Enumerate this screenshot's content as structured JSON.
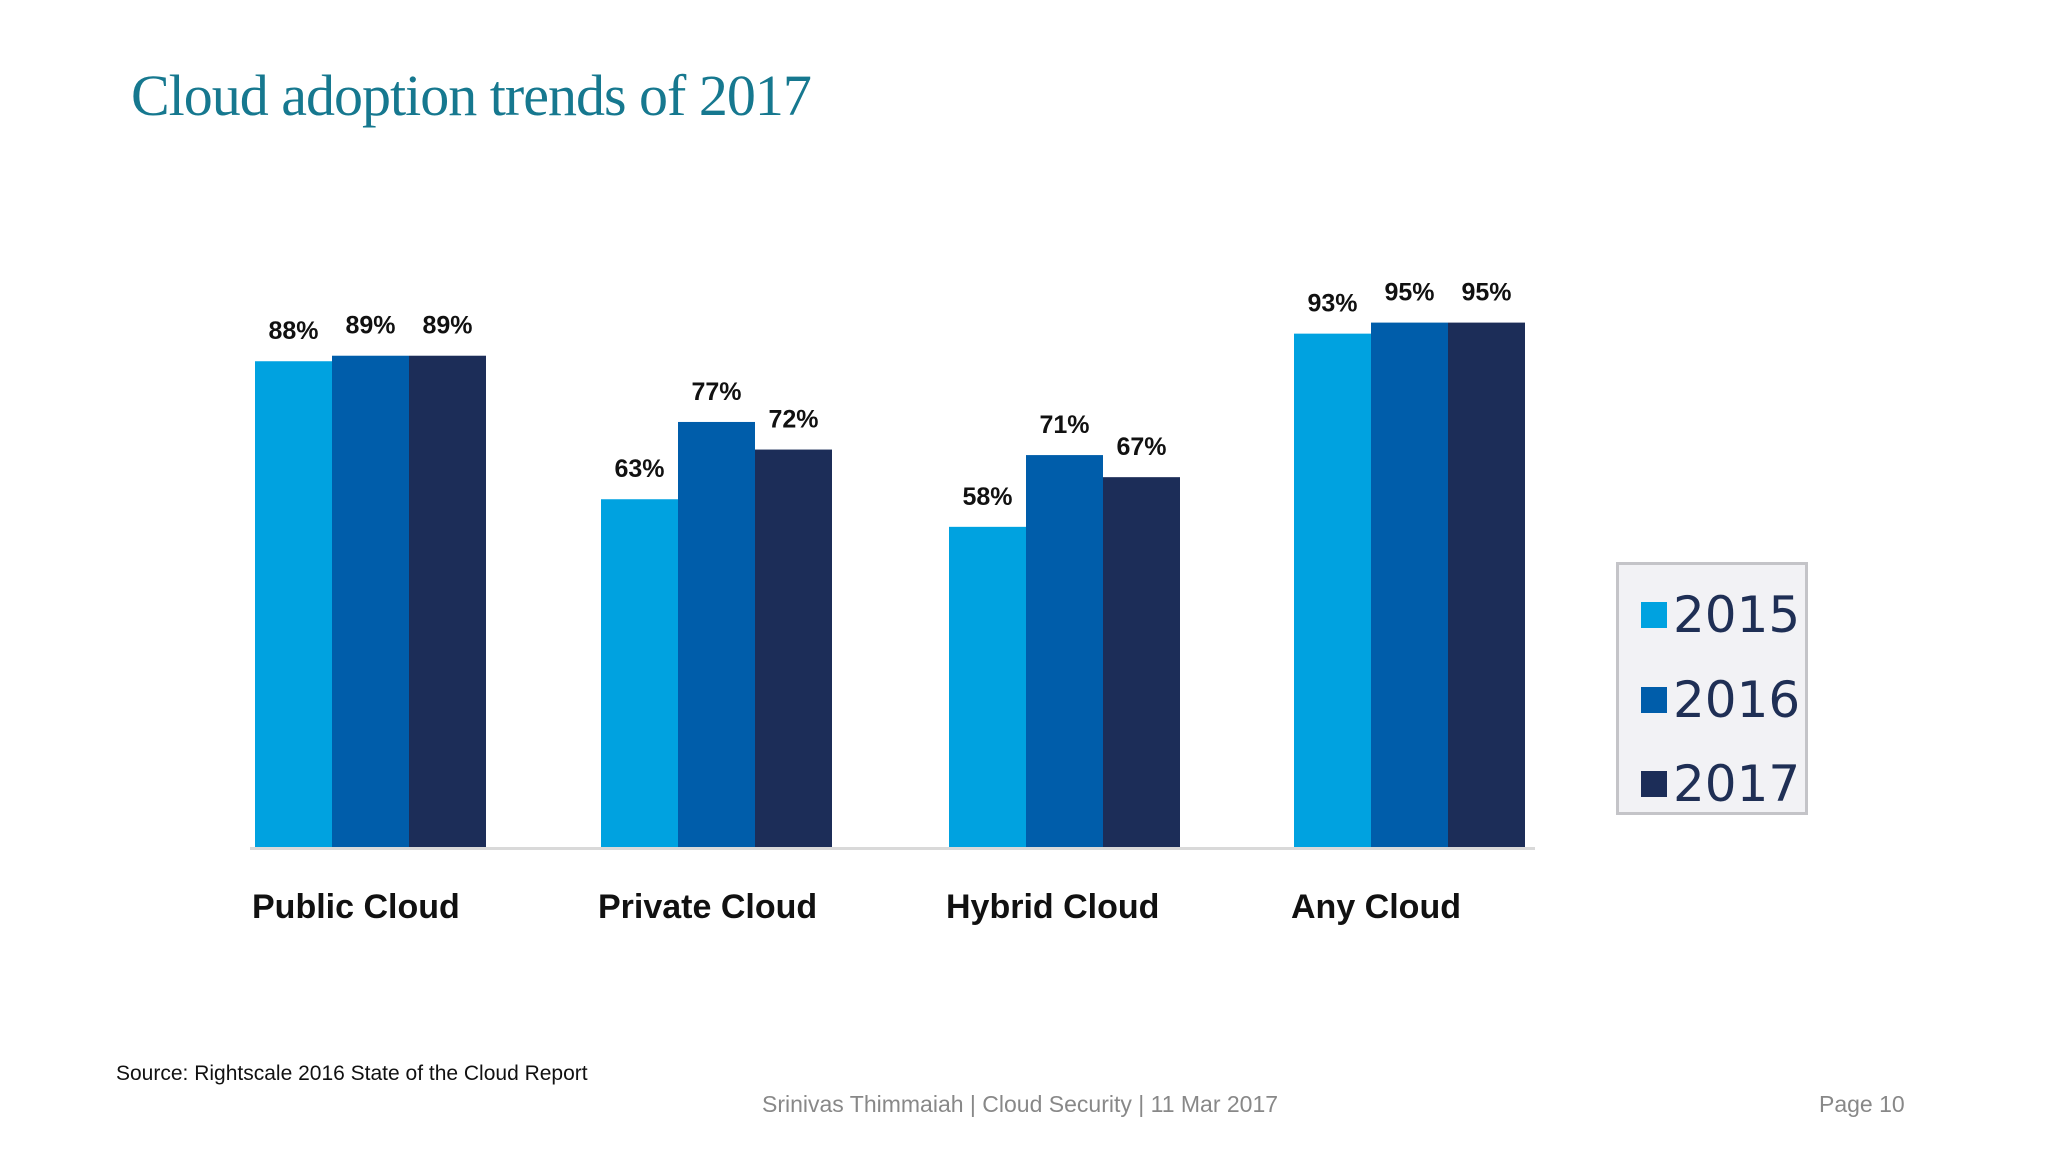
{
  "chart_data": {
    "type": "bar",
    "title": "Cloud adoption trends of 2017",
    "categories": [
      "Public Cloud",
      "Private Cloud",
      "Hybrid Cloud",
      "Any Cloud"
    ],
    "series": [
      {
        "name": "2015",
        "color": "#00a2e0",
        "values": [
          88,
          63,
          58,
          93
        ],
        "labels": [
          "88%",
          "63%",
          "58%",
          "93%"
        ]
      },
      {
        "name": "2016",
        "color": "#005daa",
        "values": [
          89,
          77,
          71,
          95
        ],
        "labels": [
          "89%",
          "77%",
          "71%",
          "95%"
        ]
      },
      {
        "name": "2017",
        "color": "#1c2d58",
        "values": [
          89,
          72,
          67,
          95
        ],
        "labels": [
          "89%",
          "72%",
          "67%",
          "95%"
        ]
      }
    ],
    "ylim": [
      0,
      100
    ],
    "grid": false,
    "legend_position": "right",
    "data_labels": true
  },
  "source": "Source: Rightscale 2016 State of the Cloud Report",
  "footer": "Srinivas Thimmaiah | Cloud Security | 11 Mar 2017",
  "page": "Page 10"
}
